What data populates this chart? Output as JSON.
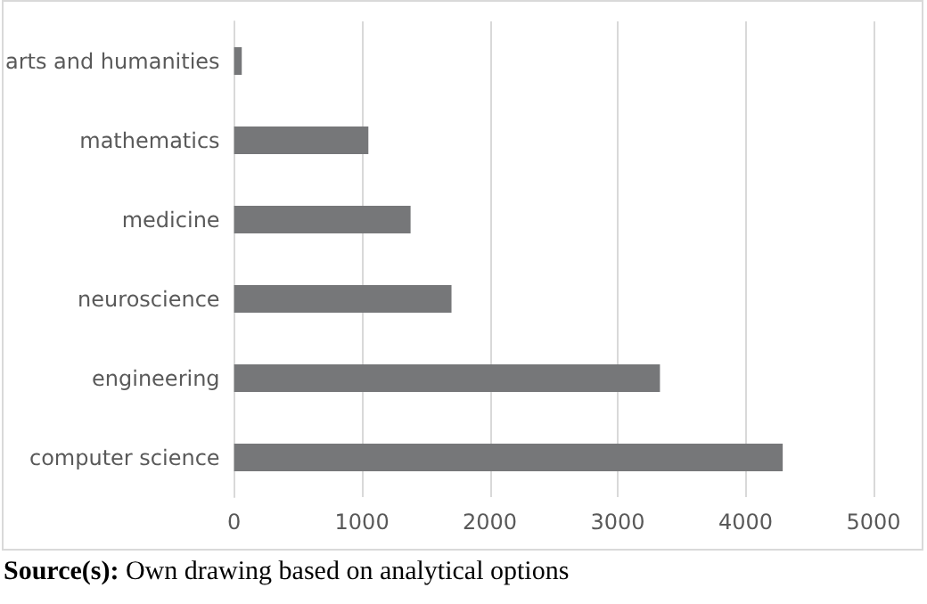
{
  "chart_data": {
    "type": "bar",
    "orientation": "horizontal",
    "categories": [
      "arts and humanities",
      "mathematics",
      "medicine",
      "neuroscience",
      "engineering",
      "computer science"
    ],
    "values": [
      60,
      1050,
      1380,
      1700,
      3330,
      4290
    ],
    "color": "#767779",
    "xlim": [
      0,
      5000
    ],
    "xticks": [
      0,
      1000,
      2000,
      3000,
      4000,
      5000
    ],
    "grid": "x",
    "annotations": [
      "Source(s): Own drawing based on analytical options"
    ]
  }
}
